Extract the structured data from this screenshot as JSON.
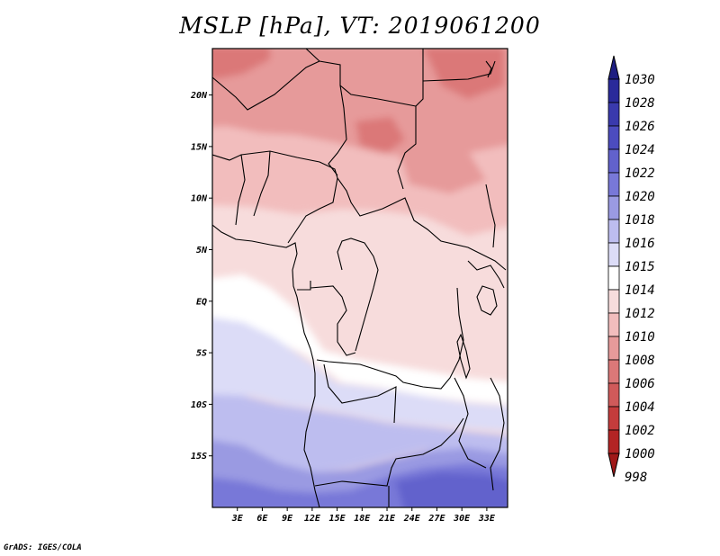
{
  "title": "MSLP [hPa], VT: 2019061200",
  "credit": "GrADS: IGES/COLA",
  "map": {
    "lon_range": [
      0,
      35.5
    ],
    "lat_range": [
      -20,
      24.5
    ],
    "lon_ticks": [
      "3E",
      "6E",
      "9E",
      "12E",
      "15E",
      "18E",
      "21E",
      "24E",
      "27E",
      "30E",
      "33E"
    ],
    "lat_ticks": [
      "20N",
      "15N",
      "10N",
      "5N",
      "EQ",
      "5S",
      "10S",
      "15S"
    ]
  },
  "colorbar": {
    "levels": [
      "1030",
      "1028",
      "1026",
      "1024",
      "1022",
      "1020",
      "1018",
      "1016",
      "1015",
      "1014",
      "1012",
      "1010",
      "1008",
      "1006",
      "1004",
      "1002",
      "1000",
      "998"
    ],
    "colors": [
      "#1e1e82",
      "#2a2a9a",
      "#3a3aad",
      "#4c4cbf",
      "#6262cc",
      "#7878d8",
      "#9a9ae2",
      "#bdbdef",
      "#dcdcf7",
      "#ffffff",
      "#f7dcdc",
      "#f2bdbd",
      "#e69a9a",
      "#db7878",
      "#d05a5a",
      "#c43c3c",
      "#b32424",
      "#a01818"
    ]
  }
}
